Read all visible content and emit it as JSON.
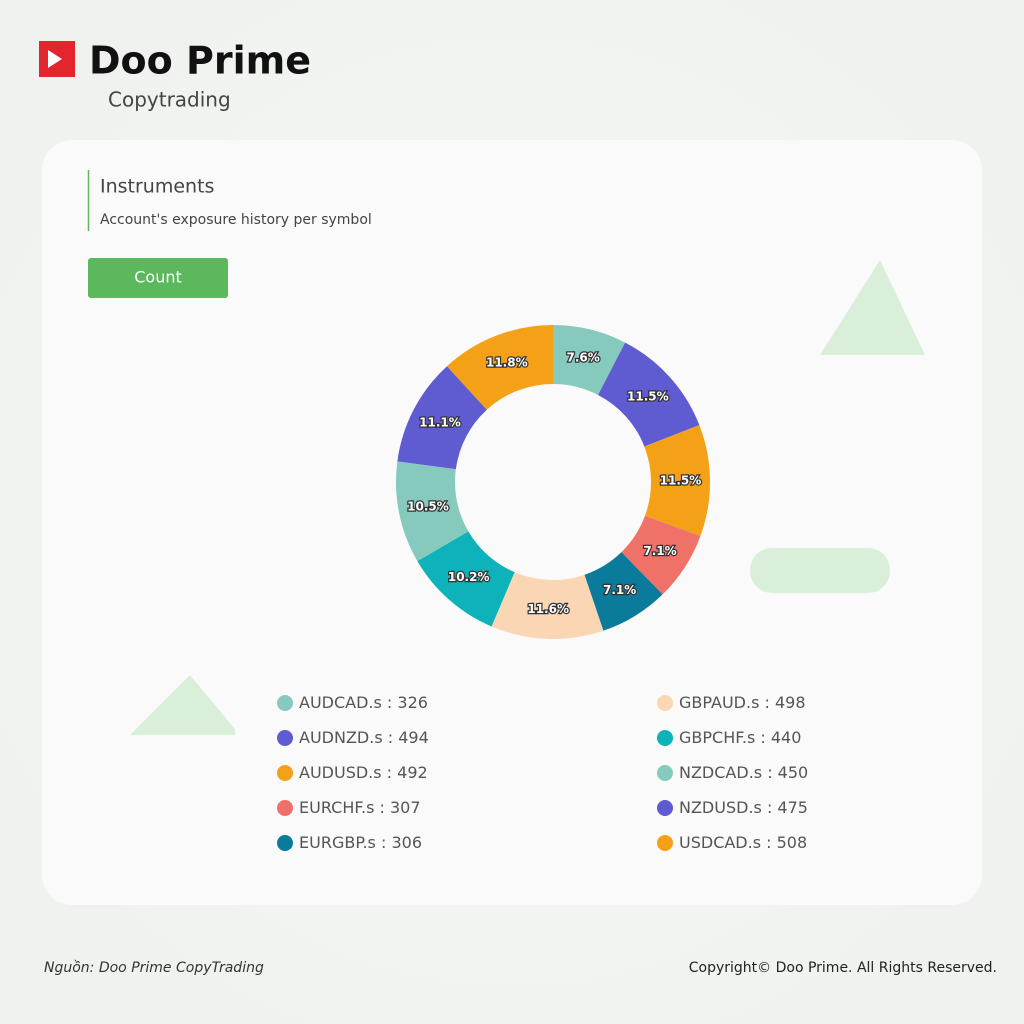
{
  "header": {
    "brand": "Doo Prime",
    "product": "Copytrading"
  },
  "card": {
    "title": "Instruments",
    "subtitle": "Account's exposure history per symbol",
    "button": "Count"
  },
  "chart_data": {
    "type": "donut",
    "categories": [
      "AUDCAD.s",
      "AUDNZD.s",
      "AUDUSD.s",
      "EURCHF.s",
      "EURGBP.s",
      "GBPAUD.s",
      "GBPCHF.s",
      "NZDCAD.s",
      "NZDUSD.s",
      "USDCAD.s"
    ],
    "values": [
      7.6,
      11.5,
      11.5,
      7.1,
      7.1,
      11.6,
      10.2,
      10.5,
      11.1,
      11.8
    ],
    "value_labels": [
      "7.6%",
      "11.5%",
      "11.5%",
      "7.1%",
      "7.1%",
      "11.6%",
      "10.2%",
      "10.5%",
      "11.1%",
      "11.8%"
    ],
    "counts": [
      326,
      494,
      492,
      307,
      306,
      498,
      440,
      450,
      475,
      508
    ],
    "legend_separator": " : ",
    "colors": [
      "#86c9bd",
      "#5f5bd1",
      "#f5a117",
      "#ef7167",
      "#0a7b9a",
      "#fbd6b4",
      "#0db2bb",
      "#86c9bd",
      "#5f5bd1",
      "#f5a117"
    ]
  },
  "footer": {
    "source": "Nguồn: Doo Prime CopyTrading",
    "copyright": "Copyright© Doo Prime. All Rights Reserved."
  }
}
